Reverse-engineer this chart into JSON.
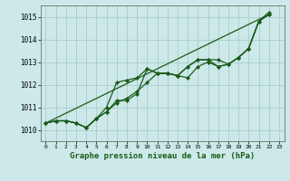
{
  "title": "Graphe pression niveau de la mer (hPa)",
  "bg_color": "#cce8e8",
  "grid_color": "#aacccc",
  "line_color": "#1a5c1a",
  "marker": "D",
  "markersize": 2,
  "xlim": [
    -0.5,
    23.5
  ],
  "ylim": [
    1009.5,
    1015.5
  ],
  "yticks": [
    1010,
    1011,
    1012,
    1013,
    1014,
    1015
  ],
  "xticks": [
    0,
    1,
    2,
    3,
    4,
    5,
    6,
    7,
    8,
    9,
    10,
    11,
    12,
    13,
    14,
    15,
    16,
    17,
    18,
    19,
    20,
    21,
    22,
    23
  ],
  "series": [
    [
      1010.3,
      1010.4,
      1010.4,
      1010.3,
      1010.1,
      1010.5,
      1010.8,
      1011.3,
      1011.3,
      1011.6,
      1012.7,
      1012.5,
      1012.5,
      1012.4,
      1012.8,
      1013.1,
      1013.1,
      1012.8,
      1012.9,
      1013.2,
      1013.6,
      1014.8,
      1015.1
    ],
    [
      1010.3,
      1010.4,
      1010.4,
      1010.3,
      1010.1,
      1010.5,
      1010.8,
      1011.2,
      1011.4,
      1011.7,
      1012.1,
      1012.5,
      1012.5,
      1012.4,
      1012.3,
      1012.8,
      1013.0,
      1012.8,
      1012.9,
      1013.2,
      1013.6,
      1014.8,
      1015.2
    ],
    [
      1010.3,
      1010.4,
      1010.4,
      1010.3,
      1010.1,
      1010.5,
      1011.0,
      1012.1,
      1012.2,
      1012.3,
      1012.7,
      1012.5,
      1012.5,
      1012.4,
      1012.8,
      1013.1,
      1013.1,
      1013.1,
      1012.9,
      1013.2,
      1013.6,
      1014.8,
      1015.1
    ]
  ],
  "series_x": [
    [
      0,
      1,
      2,
      3,
      4,
      5,
      6,
      7,
      8,
      9,
      10,
      11,
      12,
      13,
      14,
      15,
      16,
      17,
      18,
      19,
      20,
      21,
      22
    ],
    [
      0,
      1,
      2,
      3,
      4,
      5,
      6,
      7,
      8,
      9,
      10,
      11,
      12,
      13,
      14,
      15,
      16,
      17,
      18,
      19,
      20,
      21,
      22
    ],
    [
      0,
      1,
      2,
      3,
      4,
      5,
      6,
      7,
      8,
      9,
      10,
      11,
      12,
      13,
      14,
      15,
      16,
      17,
      18,
      19,
      20,
      21,
      22
    ]
  ],
  "diagonal_line": [
    [
      0,
      22
    ],
    [
      1010.3,
      1015.1
    ]
  ],
  "figwidth": 3.2,
  "figheight": 2.0,
  "dpi": 100
}
